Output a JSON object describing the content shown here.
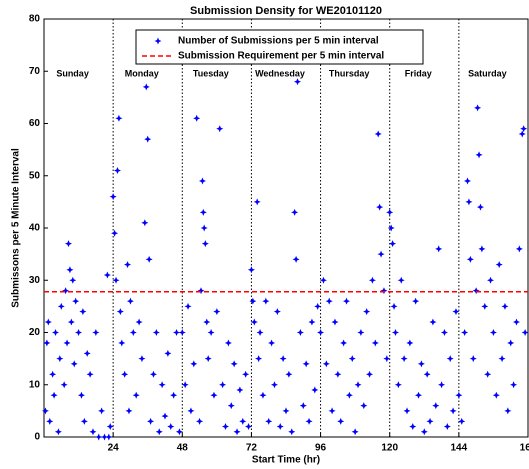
{
  "chart_data": {
    "type": "scatter",
    "title": "Submission Density for WE20101120",
    "x_label": "Start Time (hr)",
    "y_label": "Submissons per 5 Minute Interval",
    "xlim": [
      0,
      168
    ],
    "ylim": [
      0,
      80
    ],
    "xticks": [
      24,
      48,
      72,
      96,
      120,
      144,
      168
    ],
    "yticks": [
      0,
      10,
      20,
      30,
      40,
      50,
      60,
      70,
      80
    ],
    "day_labels": [
      "Sunday",
      "Monday",
      "Tuesday",
      "Wednesday",
      "Thursday",
      "Friday",
      "Saturday"
    ],
    "day_boundaries": [
      24,
      48,
      72,
      96,
      120,
      144
    ],
    "series": [
      {
        "name": "Number of Submissions per 5 min interval",
        "color": "#0000ff",
        "x": [
          0.5,
          1,
          1.5,
          2,
          3,
          3.5,
          4,
          5,
          5.5,
          6,
          7,
          7.5,
          8,
          8.5,
          9,
          9.5,
          10,
          10.5,
          11,
          12,
          13,
          13.5,
          14,
          15,
          16,
          17,
          18,
          19,
          20,
          21,
          22,
          22.5,
          23,
          24,
          24.5,
          25,
          25.5,
          26,
          26.5,
          27,
          28,
          29,
          29.5,
          30,
          31,
          32,
          33,
          34,
          35,
          35.5,
          36,
          36.5,
          37,
          38,
          39,
          40,
          41,
          42,
          43,
          44,
          45,
          46,
          47,
          48,
          49,
          50,
          51,
          52,
          53,
          54,
          54.5,
          55,
          55.3,
          55.6,
          56,
          56.5,
          57,
          58,
          59,
          60,
          61,
          62,
          63,
          64,
          65,
          66,
          67,
          68,
          69,
          70,
          71,
          72,
          72.5,
          73,
          74,
          74.5,
          75,
          76,
          77,
          78,
          79,
          80,
          81,
          82,
          83,
          84,
          85,
          86,
          87,
          87.5,
          88,
          89,
          90,
          91,
          92,
          93,
          94,
          95,
          96,
          97,
          98,
          99,
          100,
          101,
          102,
          103,
          104,
          105,
          106,
          107,
          108,
          109,
          110,
          111,
          112,
          113,
          114,
          115,
          116,
          116.5,
          117,
          118,
          119,
          120,
          120.5,
          121,
          121.5,
          122,
          123,
          124,
          125,
          126,
          127,
          128,
          129,
          130,
          131,
          132,
          133,
          134,
          135,
          136,
          137,
          138,
          139,
          140,
          141,
          142,
          143,
          144,
          145,
          146,
          147,
          147.5,
          148,
          149,
          150,
          150.5,
          151,
          151.5,
          152,
          153,
          154,
          155,
          156,
          157,
          158,
          159,
          160,
          161,
          162,
          163,
          164,
          165,
          166,
          166.5,
          167
        ],
        "values": [
          5,
          18,
          22,
          3,
          12,
          8,
          20,
          1,
          15,
          25,
          10,
          28,
          18,
          37,
          32,
          22,
          30,
          14,
          26,
          20,
          8,
          24,
          3,
          16,
          12,
          1,
          20,
          0,
          5,
          0,
          31,
          0,
          2,
          46,
          39,
          30,
          51,
          61,
          24,
          18,
          12,
          33,
          5,
          26,
          20,
          8,
          22,
          15,
          41,
          67,
          57,
          34,
          3,
          12,
          20,
          1,
          10,
          4,
          16,
          2,
          8,
          20,
          1,
          20,
          10,
          25,
          5,
          14,
          61,
          3,
          28,
          49,
          43,
          40,
          37,
          22,
          15,
          20,
          8,
          24,
          59,
          10,
          2,
          18,
          6,
          14,
          1,
          9,
          3,
          12,
          2,
          32,
          26,
          22,
          45,
          15,
          20,
          8,
          26,
          3,
          18,
          10,
          24,
          2,
          15,
          5,
          12,
          1,
          43,
          34,
          68,
          20,
          6,
          14,
          3,
          22,
          9,
          25,
          20,
          30,
          14,
          26,
          5,
          22,
          12,
          3,
          18,
          26,
          8,
          15,
          1,
          10,
          20,
          6,
          24,
          12,
          30,
          18,
          58,
          44,
          35,
          28,
          15,
          43,
          40,
          37,
          25,
          20,
          10,
          30,
          15,
          5,
          18,
          2,
          26,
          8,
          14,
          1,
          12,
          3,
          22,
          6,
          36,
          10,
          20,
          2,
          15,
          5,
          24,
          8,
          3,
          20,
          49,
          45,
          34,
          15,
          28,
          63,
          54,
          44,
          36,
          25,
          12,
          30,
          20,
          8,
          33,
          15,
          25,
          5,
          18,
          10,
          22,
          36,
          58,
          59,
          20
        ]
      },
      {
        "name": "Submission Requirement per 5 min interval",
        "color": "#ff0000",
        "value": 27.8
      }
    ]
  }
}
